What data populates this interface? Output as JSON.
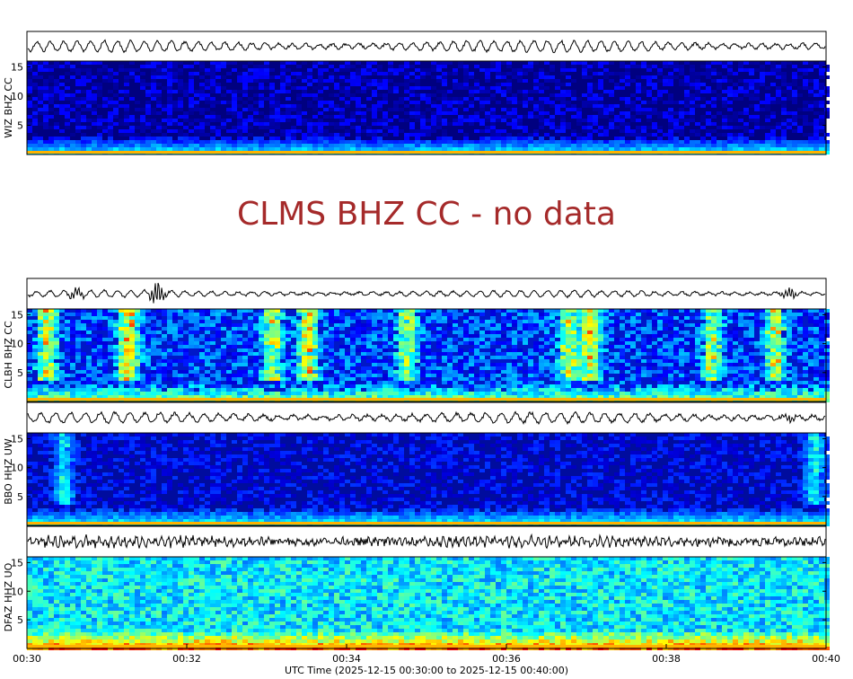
{
  "chart_data": {
    "type": "spectrogram",
    "xlabel": "UTC Time (2025-12-15 00:30:00 to 2025-12-15 00:40:00)",
    "x_ticks": [
      "00:30",
      "00:32",
      "00:34",
      "00:36",
      "00:38",
      "00:40"
    ],
    "xlim": [
      "00:30",
      "00:40"
    ],
    "colors": {
      "no_data_text": "#a52a2a",
      "colormap": "jet"
    },
    "stations": [
      {
        "label": "WIZ BHZ CC",
        "has_data": true,
        "y_ticks": [
          "5",
          "10",
          "15"
        ],
        "ylim": [
          0,
          16
        ],
        "intensity": "low"
      },
      {
        "label": "CLMS BHZ CC - no data",
        "has_data": false
      },
      {
        "label": "CLBH BHZ CC",
        "has_data": true,
        "y_ticks": [
          "5",
          "10",
          "15"
        ],
        "ylim": [
          0,
          16
        ],
        "intensity": "medium"
      },
      {
        "label": "BBO HHZ UW",
        "has_data": true,
        "y_ticks": [
          "5",
          "10",
          "15"
        ],
        "ylim": [
          0,
          16
        ],
        "intensity": "low"
      },
      {
        "label": "DFAZ HHZ UO",
        "has_data": true,
        "y_ticks": [
          "5",
          "10",
          "15"
        ],
        "ylim": [
          0,
          16
        ],
        "intensity": "high"
      }
    ]
  }
}
